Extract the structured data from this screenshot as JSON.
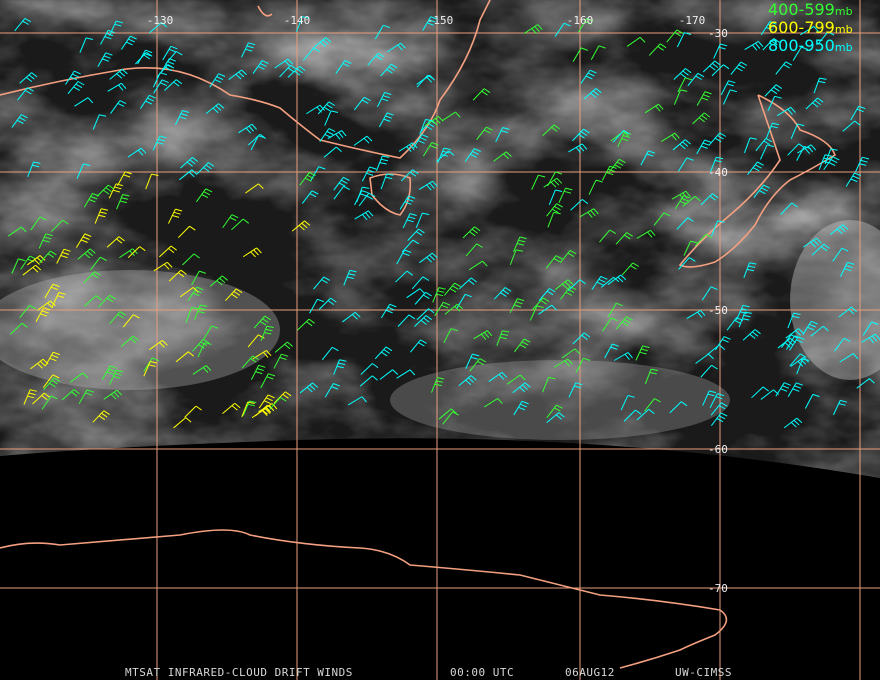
{
  "map": {
    "lon_labels": [
      "-130",
      "-140",
      "-150",
      "-160",
      "-170"
    ],
    "lat_labels": [
      "-30",
      "-40",
      "-50",
      "-60",
      "-70"
    ],
    "legend": [
      {
        "range": "400-599",
        "unit": "mb",
        "color": "#33ff33"
      },
      {
        "range": "600-799",
        "unit": "mb",
        "color": "#ffff00"
      },
      {
        "range": "800-950",
        "unit": "mb",
        "color": "#00ffff"
      }
    ],
    "footer": {
      "product": "MTSAT INFRARED-CLOUD DRIFT WINDS",
      "time": "00:00 UTC",
      "date": "06AUG12",
      "source": "UW-CIMSS"
    }
  }
}
